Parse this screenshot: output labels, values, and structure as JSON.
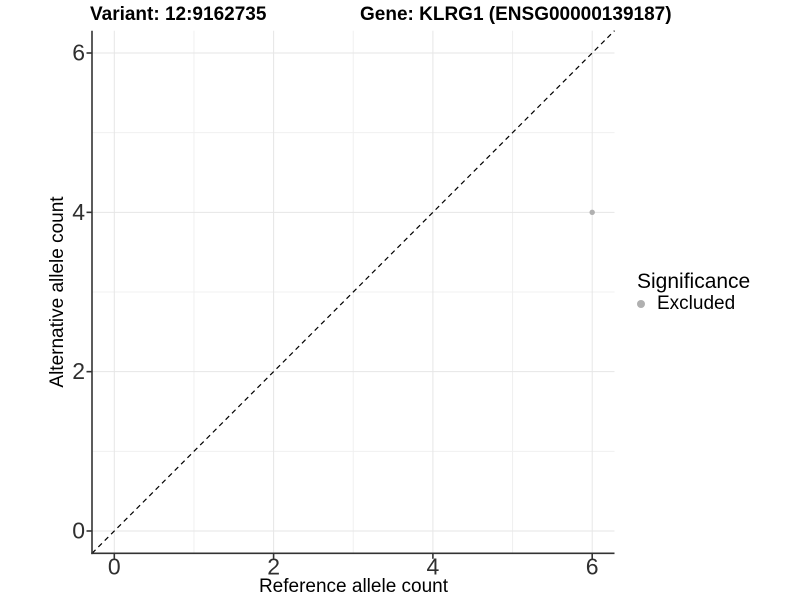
{
  "title": {
    "variant_label": "Variant: 12:9162735",
    "gene_label": "Gene: KLRG1 (ENSG00000139187)"
  },
  "axes": {
    "x_label": "Reference allele count",
    "y_label": "Alternative allele count"
  },
  "legend": {
    "title": "Significance",
    "items": [
      {
        "label": "Excluded",
        "color": "#b0b0b0"
      }
    ]
  },
  "colors": {
    "background": "#ffffff",
    "grid_major": "#e6e6e6",
    "grid_minor": "#f0f0f0",
    "axis_line": "#333333",
    "tick_mark": "#333333",
    "tick_label": "#2f2f2f",
    "identity_line": "#000000",
    "point": "#b0b0b0"
  },
  "chart_data": {
    "type": "scatter",
    "title": "Variant: 12:9162735    Gene: KLRG1 (ENSG00000139187)",
    "xlabel": "Reference allele count",
    "ylabel": "Alternative allele count",
    "xlim": [
      -0.28,
      6.28
    ],
    "ylim": [
      -0.28,
      6.28
    ],
    "x_ticks": [
      0,
      2,
      4,
      6
    ],
    "y_ticks": [
      0,
      2,
      4,
      6
    ],
    "x_minor_ticks": [
      1,
      3,
      5
    ],
    "y_minor_ticks": [
      1,
      3,
      5
    ],
    "grid": "major-and-minor",
    "legend_position": "right",
    "series": [
      {
        "name": "Excluded",
        "color": "#b0b0b0",
        "points": [
          [
            6,
            4
          ]
        ]
      }
    ],
    "annotations": [
      {
        "type": "identity-line",
        "description": "y = x dashed reference line",
        "style": "dashed",
        "color": "#000000"
      }
    ]
  }
}
